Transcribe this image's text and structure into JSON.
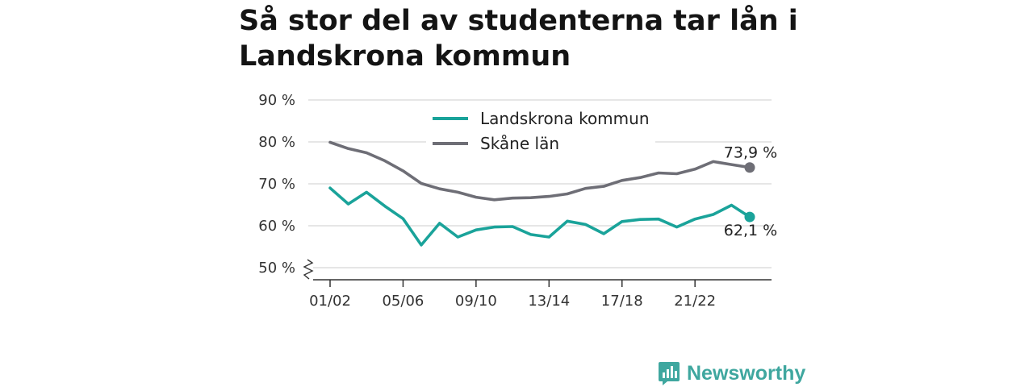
{
  "title": "Så stor del av studenterna tar lån i Landskrona kommun",
  "brand": {
    "name": "Newsworthy",
    "icon": "newsworthy-logo-icon",
    "color": "#3fa79f"
  },
  "chart_data": {
    "type": "line",
    "title": "Så stor del av studenterna tar lån i Landskrona kommun",
    "xlabel": "",
    "ylabel": "",
    "ylim": [
      50,
      90
    ],
    "y_axis_break": true,
    "grid": true,
    "legend_position": "top-center",
    "y_ticks": [
      {
        "value": 50,
        "label": "50 %"
      },
      {
        "value": 60,
        "label": "60 %"
      },
      {
        "value": 70,
        "label": "70 %"
      },
      {
        "value": 80,
        "label": "80 %"
      },
      {
        "value": 90,
        "label": "90 %"
      }
    ],
    "x": [
      "01/02",
      "02/03",
      "03/04",
      "04/05",
      "05/06",
      "06/07",
      "07/08",
      "08/09",
      "09/10",
      "10/11",
      "11/12",
      "12/13",
      "13/14",
      "14/15",
      "15/16",
      "16/17",
      "17/18",
      "18/19",
      "19/20",
      "20/21",
      "21/22",
      "22/23",
      "23/24",
      "24/25"
    ],
    "x_tick_labels": [
      "01/02",
      "05/06",
      "09/10",
      "13/14",
      "17/18",
      "21/22"
    ],
    "series": [
      {
        "name": "Landskrona kommun",
        "color": "#1aa39a",
        "values": [
          69.0,
          65.2,
          68.0,
          64.7,
          61.7,
          55.4,
          60.6,
          57.3,
          59.0,
          59.7,
          59.8,
          57.9,
          57.3,
          61.1,
          60.3,
          58.1,
          61.0,
          61.5,
          61.6,
          59.7,
          61.6,
          62.7,
          64.9,
          62.1
        ],
        "end_label": "62,1 %"
      },
      {
        "name": "Skåne län",
        "color": "#6e6e76",
        "values": [
          79.9,
          78.4,
          77.4,
          75.5,
          73.1,
          70.1,
          68.8,
          68.0,
          66.8,
          66.2,
          66.6,
          66.7,
          67.0,
          67.6,
          68.9,
          69.4,
          70.8,
          71.5,
          72.6,
          72.4,
          73.5,
          75.3,
          74.6,
          73.9
        ],
        "end_label": "73,9 %"
      }
    ]
  }
}
